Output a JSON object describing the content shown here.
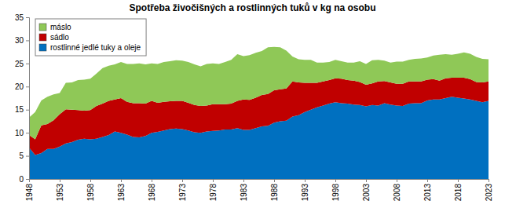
{
  "chart_data": {
    "type": "area",
    "title": "Spotřeba živočišných a rostlinných tuků v kg na osobu",
    "stacked": true,
    "grid": false,
    "legend": "top-left",
    "x": [
      1948,
      1949,
      1950,
      1951,
      1952,
      1953,
      1954,
      1955,
      1956,
      1957,
      1958,
      1959,
      1960,
      1961,
      1962,
      1963,
      1964,
      1965,
      1966,
      1967,
      1968,
      1969,
      1970,
      1971,
      1972,
      1973,
      1974,
      1975,
      1976,
      1977,
      1978,
      1979,
      1980,
      1981,
      1982,
      1983,
      1984,
      1985,
      1986,
      1987,
      1988,
      1989,
      1990,
      1991,
      1992,
      1993,
      1994,
      1995,
      1996,
      1997,
      1998,
      1999,
      2000,
      2001,
      2002,
      2003,
      2004,
      2005,
      2006,
      2007,
      2008,
      2009,
      2010,
      2011,
      2012,
      2013,
      2014,
      2015,
      2016,
      2017,
      2018,
      2019,
      2020,
      2021,
      2022,
      2023
    ],
    "xlim": [
      1948,
      2023
    ],
    "xticks": [
      1948,
      1953,
      1958,
      1963,
      1968,
      1973,
      1978,
      1983,
      1988,
      1993,
      1998,
      2003,
      2008,
      2013,
      2018,
      2023
    ],
    "ylim": [
      0,
      35
    ],
    "yticks": [
      0,
      5,
      10,
      15,
      20,
      25,
      30,
      35
    ],
    "series": [
      {
        "name": "rostlinné jedlé tuky a oleje",
        "color": "#0070c0",
        "values": [
          6.8,
          5.2,
          5.6,
          6.5,
          6.5,
          7.0,
          7.7,
          8.0,
          8.5,
          8.7,
          8.6,
          8.7,
          9.1,
          9.5,
          10.3,
          10.0,
          9.6,
          9.1,
          9.0,
          9.3,
          10.0,
          10.2,
          10.5,
          10.8,
          10.9,
          10.8,
          10.5,
          10.1,
          10.0,
          10.3,
          10.4,
          10.5,
          10.7,
          10.7,
          11.0,
          10.6,
          10.6,
          11.0,
          11.4,
          11.5,
          12.2,
          12.5,
          12.6,
          13.5,
          13.8,
          14.5,
          15.0,
          15.5,
          15.9,
          16.3,
          16.6,
          16.4,
          16.3,
          16.1,
          16.0,
          15.7,
          16.0,
          15.9,
          16.4,
          16.1,
          15.9,
          15.8,
          16.3,
          16.4,
          16.4,
          17.0,
          17.2,
          17.2,
          17.5,
          17.8,
          17.6,
          17.4,
          17.2,
          16.9,
          16.6,
          16.9
        ]
      },
      {
        "name": "sádlo",
        "color": "#c00000",
        "values": [
          2.7,
          3.4,
          6.0,
          5.4,
          6.2,
          7.0,
          7.4,
          7.0,
          6.4,
          6.1,
          6.3,
          7.1,
          7.2,
          7.4,
          6.9,
          7.5,
          7.1,
          7.3,
          7.4,
          7.0,
          6.9,
          6.3,
          6.2,
          6.0,
          6.0,
          6.1,
          6.0,
          5.9,
          5.8,
          5.6,
          5.8,
          5.7,
          5.5,
          5.6,
          5.9,
          6.6,
          6.5,
          6.6,
          6.8,
          6.9,
          7.0,
          6.9,
          7.0,
          7.6,
          7.1,
          6.3,
          5.8,
          5.3,
          5.2,
          5.1,
          5.2,
          5.3,
          5.1,
          5.2,
          5.0,
          4.7,
          4.7,
          5.2,
          4.8,
          4.8,
          4.7,
          4.8,
          4.8,
          4.7,
          4.7,
          4.5,
          4.4,
          4.1,
          4.3,
          4.1,
          4.3,
          4.5,
          4.4,
          4.1,
          4.3,
          4.2
        ]
      },
      {
        "name": "máslo",
        "color": "#8fc857",
        "values": [
          3.8,
          5.9,
          5.4,
          5.9,
          5.6,
          4.6,
          5.7,
          5.9,
          6.5,
          6.7,
          6.8,
          7.0,
          7.7,
          7.6,
          7.6,
          7.8,
          8.2,
          8.5,
          8.6,
          8.5,
          8.1,
          8.4,
          8.6,
          8.7,
          8.8,
          8.7,
          8.8,
          8.8,
          8.6,
          9.0,
          8.8,
          8.7,
          9.1,
          9.5,
          10.1,
          9.4,
          9.7,
          9.7,
          9.5,
          10.1,
          9.4,
          9.1,
          8.2,
          5.4,
          5.0,
          5.0,
          5.0,
          4.4,
          4.1,
          3.9,
          4.0,
          3.8,
          3.8,
          3.9,
          4.5,
          4.5,
          5.0,
          4.7,
          4.4,
          4.3,
          4.8,
          4.8,
          4.7,
          4.9,
          5.0,
          4.8,
          5.1,
          5.6,
          5.2,
          5.0,
          5.2,
          5.5,
          5.5,
          5.4,
          5.1,
          4.8
        ]
      }
    ]
  }
}
